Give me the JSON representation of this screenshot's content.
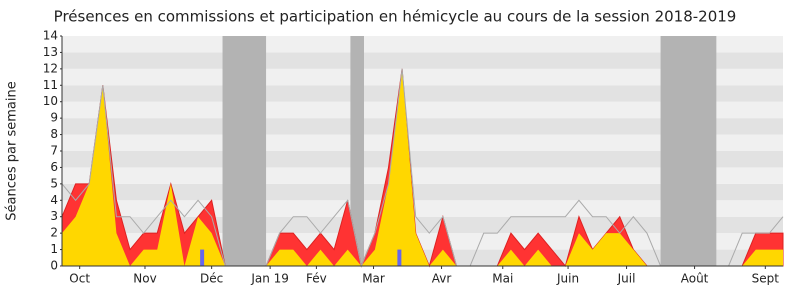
{
  "chart_data": {
    "type": "area",
    "title": "Présences en commissions et participation en hémicycle au cours de la session 2018-2019",
    "ylabel": "Séances par semaine",
    "x": [
      0,
      1,
      2,
      3,
      4,
      5,
      6,
      7,
      8,
      9,
      10,
      11,
      12,
      13,
      14,
      15,
      16,
      17,
      18,
      19,
      20,
      21,
      22,
      23,
      24,
      25,
      26,
      27,
      28,
      29,
      30,
      31,
      32,
      33,
      34,
      35,
      36,
      37,
      38,
      39,
      40,
      41,
      42,
      43,
      44,
      45,
      46,
      47,
      48,
      49,
      50,
      51,
      52,
      53
    ],
    "xlim": [
      0,
      53
    ],
    "xticks": [
      {
        "value": 1.3,
        "label": "Oct"
      },
      {
        "value": 6.1,
        "label": "Nov"
      },
      {
        "value": 11,
        "label": "Déc"
      },
      {
        "value": 15.3,
        "label": "Jan 19"
      },
      {
        "value": 18.7,
        "label": "Fév"
      },
      {
        "value": 22.9,
        "label": "Mar"
      },
      {
        "value": 27.9,
        "label": "Avr"
      },
      {
        "value": 32.4,
        "label": "Mai"
      },
      {
        "value": 37.2,
        "label": "Juin"
      },
      {
        "value": 41.5,
        "label": "Juil"
      },
      {
        "value": 46.5,
        "label": "Août"
      },
      {
        "value": 51.7,
        "label": "Sept"
      }
    ],
    "ylim": [
      0,
      14
    ],
    "yticks": [
      0,
      1,
      2,
      3,
      4,
      5,
      6,
      7,
      8,
      9,
      10,
      11,
      12,
      13,
      14
    ],
    "vacations": [
      [
        11.8,
        15
      ],
      [
        21.2,
        22.2
      ],
      [
        44,
        48.1
      ]
    ],
    "vacation_color": "#b3b3b3",
    "series": [
      {
        "color": "#ff3333",
        "values": [
          3,
          5,
          5,
          11,
          4,
          1,
          2,
          2,
          5,
          2,
          3,
          4,
          0,
          0,
          0,
          0,
          2,
          2,
          1,
          2,
          1,
          4,
          0,
          2,
          6,
          12,
          2,
          0,
          3,
          0,
          0,
          0,
          0,
          2,
          1,
          2,
          1,
          0,
          3,
          1,
          2,
          3,
          1,
          0,
          0,
          0,
          0,
          0,
          0,
          0,
          0,
          2,
          2,
          2
        ]
      },
      {
        "color": "#ffd700",
        "values": [
          2,
          3,
          5,
          11,
          2,
          0,
          1,
          1,
          5,
          0,
          3,
          2,
          0,
          0,
          0,
          0,
          1,
          1,
          0,
          1,
          0,
          1,
          0,
          1,
          5,
          12,
          2,
          0,
          1,
          0,
          0,
          0,
          0,
          1,
          0,
          1,
          0,
          0,
          2,
          1,
          2,
          2,
          1,
          0,
          0,
          0,
          0,
          0,
          0,
          0,
          0,
          1,
          1,
          1
        ]
      },
      {
        "color": "#aaaaaa",
        "values": [
          5,
          4,
          5,
          11,
          3,
          3,
          2,
          3,
          4,
          3,
          4,
          3,
          0,
          0,
          0,
          0,
          2,
          3,
          3,
          2,
          3,
          4,
          0,
          2,
          5,
          12,
          3,
          2,
          3,
          0,
          0,
          2,
          2,
          3,
          3,
          3,
          3,
          3,
          4,
          3,
          3,
          2,
          3,
          2,
          0,
          0,
          0,
          0,
          0,
          0,
          2,
          2,
          2,
          3
        ]
      }
    ],
    "bars": {
      "color": "#6666ee",
      "x": [
        10.3,
        24.8
      ],
      "values": [
        1,
        1
      ]
    }
  }
}
